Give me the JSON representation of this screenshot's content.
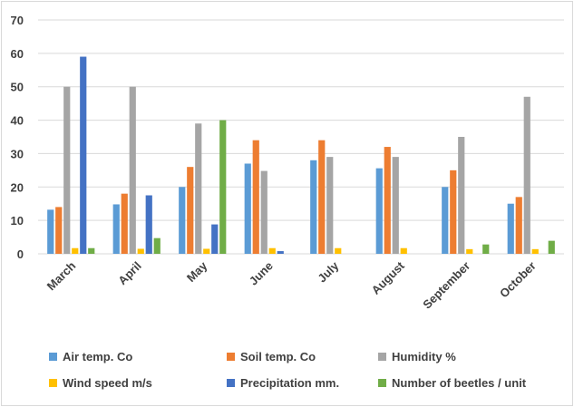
{
  "chart_data": {
    "type": "bar",
    "categories": [
      "March",
      "April",
      "May",
      "June",
      "July",
      "August",
      "September",
      "October"
    ],
    "ylim": [
      0,
      70
    ],
    "yticks": [
      "0",
      "10",
      "20",
      "30",
      "40",
      "50",
      "60",
      "70"
    ],
    "grid": true,
    "legend_position": "bottom",
    "series": [
      {
        "name": "Air temp. Co",
        "color": "#5b9bd5",
        "values": [
          13.2,
          14.8,
          20,
          27,
          28,
          25.6,
          20,
          15
        ]
      },
      {
        "name": "Soil temp. Co",
        "color": "#ed7d31",
        "values": [
          14,
          18,
          26,
          34,
          34,
          32,
          25,
          17
        ]
      },
      {
        "name": "Humidity %",
        "color": "#a5a5a5",
        "values": [
          50,
          50,
          39,
          24.8,
          29,
          29,
          35,
          47
        ]
      },
      {
        "name": "Wind speed m/s",
        "color": "#ffc000",
        "values": [
          1.7,
          1.5,
          1.5,
          1.7,
          1.7,
          1.7,
          1.4,
          1.4
        ]
      },
      {
        "name": "Precipitation mm.",
        "color": "#4472c4",
        "values": [
          59,
          17.5,
          8.8,
          0.8,
          0,
          0,
          0,
          0
        ]
      },
      {
        "name": "Number of beetles / unit",
        "color": "#70ad47",
        "values": [
          1.7,
          4.7,
          40,
          0,
          0,
          0,
          2.8,
          3.9
        ]
      }
    ]
  }
}
